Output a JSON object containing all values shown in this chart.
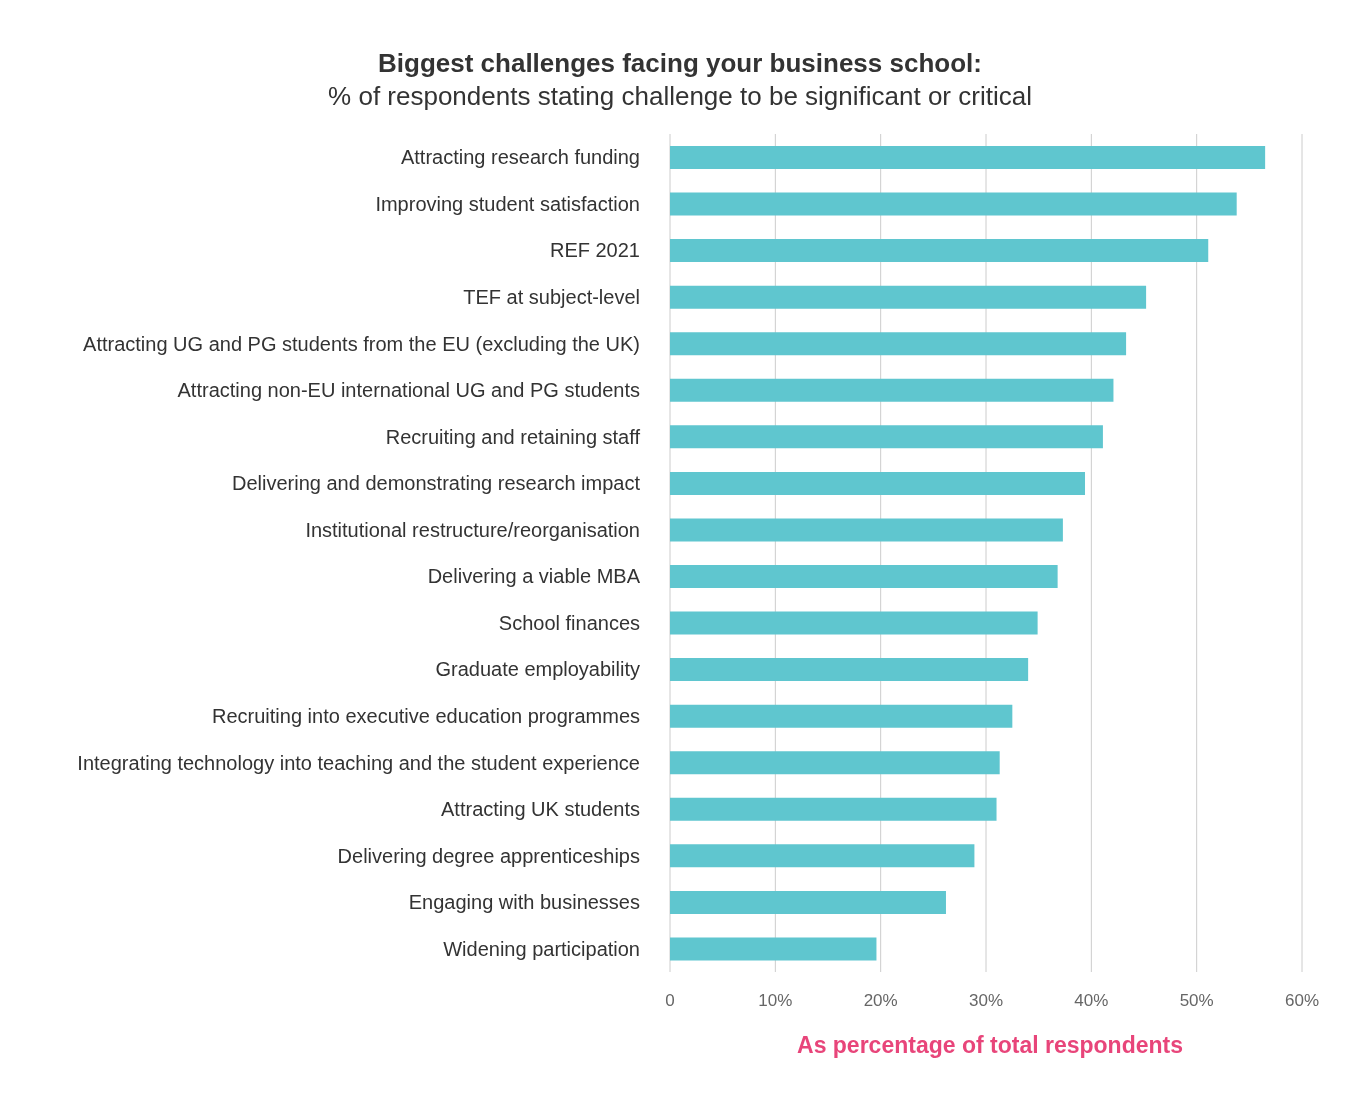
{
  "chart_data": {
    "type": "bar",
    "orientation": "horizontal",
    "title": "Biggest challenges facing your business school:",
    "subtitle": "% of  respondents stating challenge to be significant or critical",
    "xlabel": "As percentage of total respondents",
    "categories": [
      "Attracting research funding",
      "Improving student satisfaction",
      "REF 2021",
      "TEF at subject-level",
      "Attracting UG and PG students from the EU (excluding the UK)",
      "Attracting non-EU international UG and PG students",
      "Recruiting and retaining staff",
      "Delivering and demonstrating research impact",
      "Institutional restructure/reorganisation",
      "Delivering a viable MBA",
      "School finances",
      "Graduate employability",
      "Recruiting into executive education programmes",
      "Integrating technology into teaching and the student experience",
      "Attracting UK students",
      "Delivering degree apprenticeships",
      "Engaging with businesses",
      "Widening participation"
    ],
    "values": [
      56.5,
      53.8,
      51.1,
      45.2,
      43.3,
      42.1,
      41.1,
      39.4,
      37.3,
      36.8,
      34.9,
      34.0,
      32.5,
      31.3,
      31.0,
      28.9,
      26.2,
      19.6
    ],
    "color": "#5fc6cf",
    "xlim": [
      0,
      60
    ],
    "xticks": [
      0,
      {
        "value": 10,
        "label": "10%"
      },
      {
        "value": 20,
        "label": "20%"
      },
      {
        "value": 30,
        "label": "30%"
      },
      {
        "value": 40,
        "label": "40%"
      },
      {
        "value": 50,
        "label": "50%"
      },
      {
        "value": 60,
        "label": "60%"
      }
    ],
    "grid": "x"
  }
}
